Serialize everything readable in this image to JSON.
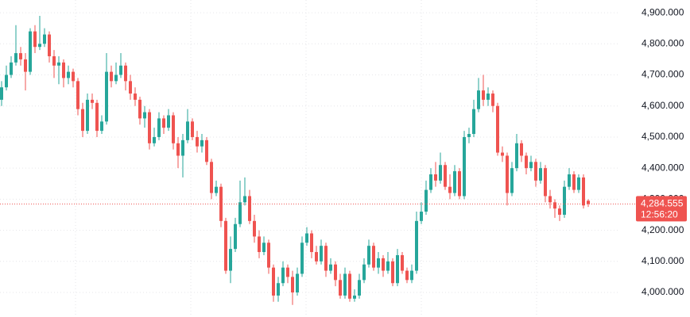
{
  "chart_data": {
    "type": "candlestick",
    "up_color": "#26a69a",
    "down_color": "#ef5350",
    "ylim": [
      3921,
      4941
    ],
    "yticks": [
      {
        "value": 4000,
        "label": "4,000.000"
      },
      {
        "value": 4100,
        "label": "4,100.000"
      },
      {
        "value": 4200,
        "label": "4,200.000"
      },
      {
        "value": 4300,
        "label": "4,300.000"
      },
      {
        "value": 4400,
        "label": "4,400.000"
      },
      {
        "value": 4500,
        "label": "4,500.000"
      },
      {
        "value": 4600,
        "label": "4,600.000"
      },
      {
        "value": 4700,
        "label": "4,700.000"
      },
      {
        "value": 4800,
        "label": "4,800.000"
      },
      {
        "value": 4900,
        "label": "4,900.000"
      }
    ],
    "grid": true,
    "price_line": {
      "value": 4284.555,
      "label": "4,284.555",
      "countdown": "12:56:20"
    },
    "open": [
      4620,
      4660,
      4700,
      4740,
      4770,
      4750,
      4710,
      4840,
      4790,
      4800,
      4830,
      4760,
      4730,
      4740,
      4690,
      4710,
      4680,
      4590,
      4520,
      4620,
      4610,
      4520,
      4550,
      4710,
      4680,
      4700,
      4730,
      4680,
      4640,
      4620,
      4560,
      4580,
      4480,
      4500,
      4560,
      4530,
      4570,
      4480,
      4440,
      4490,
      4550,
      4500,
      4470,
      4490,
      4420,
      4320,
      4340,
      4230,
      4070,
      4140,
      4220,
      4290,
      4310,
      4230,
      4180,
      4130,
      4160,
      4080,
      3990,
      4030,
      4080,
      4050,
      4000,
      4060,
      4160,
      4190,
      4130,
      4100,
      4150,
      4070,
      4090,
      4040,
      3990,
      4060,
      3980,
      3990,
      4040,
      4090,
      4150,
      4080,
      4110,
      4070,
      4100,
      4030,
      4120,
      4070,
      4040,
      4070,
      4230,
      4260,
      4330,
      4380,
      4360,
      4410,
      4340,
      4320,
      4390,
      4310,
      4500,
      4510,
      4590,
      4650,
      4620,
      4640,
      4600,
      4450,
      4440,
      4320,
      4400,
      4480,
      4440,
      4400,
      4420,
      4360,
      4400,
      4310,
      4290,
      4270,
      4250,
      4340,
      4380,
      4330,
      4370,
      4295
    ],
    "high": [
      4680,
      4730,
      4760,
      4860,
      4790,
      4770,
      4850,
      4860,
      4890,
      4850,
      4840,
      4780,
      4760,
      4750,
      4730,
      4720,
      4690,
      4610,
      4640,
      4640,
      4620,
      4570,
      4770,
      4730,
      4740,
      4770,
      4740,
      4700,
      4660,
      4630,
      4600,
      4590,
      4530,
      4580,
      4570,
      4590,
      4580,
      4500,
      4510,
      4590,
      4560,
      4520,
      4510,
      4500,
      4430,
      4360,
      4350,
      4240,
      4180,
      4240,
      4360,
      4370,
      4330,
      4250,
      4200,
      4180,
      4170,
      4090,
      4050,
      4100,
      4090,
      4070,
      4080,
      4180,
      4210,
      4200,
      4150,
      4170,
      4160,
      4110,
      4100,
      4060,
      4080,
      4070,
      4010,
      4060,
      4110,
      4170,
      4160,
      4130,
      4120,
      4130,
      4110,
      4140,
      4130,
      4080,
      4090,
      4260,
      4290,
      4360,
      4400,
      4420,
      4450,
      4420,
      4380,
      4410,
      4400,
      4520,
      4530,
      4620,
      4690,
      4700,
      4660,
      4650,
      4610,
      4470,
      4450,
      4420,
      4510,
      4490,
      4450,
      4440,
      4430,
      4420,
      4410,
      4330,
      4300,
      4280,
      4360,
      4400,
      4390,
      4380,
      4380,
      4300
    ],
    "low": [
      4600,
      4650,
      4690,
      4730,
      4730,
      4650,
      4700,
      4770,
      4780,
      4790,
      4740,
      4690,
      4670,
      4660,
      4670,
      4660,
      4570,
      4500,
      4510,
      4590,
      4500,
      4510,
      4540,
      4660,
      4670,
      4690,
      4650,
      4620,
      4600,
      4540,
      4530,
      4460,
      4470,
      4490,
      4510,
      4520,
      4460,
      4400,
      4370,
      4480,
      4490,
      4450,
      4450,
      4410,
      4300,
      4310,
      4210,
      4060,
      4030,
      4130,
      4210,
      4280,
      4220,
      4160,
      4110,
      4120,
      4060,
      3970,
      3970,
      4020,
      4030,
      3960,
      3990,
      4050,
      4150,
      4110,
      4090,
      4090,
      4050,
      4060,
      4020,
      3980,
      3980,
      3970,
      3970,
      3980,
      4030,
      4080,
      4070,
      4060,
      4050,
      4060,
      4020,
      4020,
      4060,
      4030,
      4030,
      4060,
      4220,
      4250,
      4320,
      4340,
      4350,
      4330,
      4300,
      4310,
      4300,
      4300,
      4480,
      4500,
      4580,
      4600,
      4600,
      4580,
      4440,
      4420,
      4280,
      4310,
      4390,
      4420,
      4380,
      4390,
      4340,
      4350,
      4290,
      4270,
      4240,
      4230,
      4240,
      4330,
      4320,
      4320,
      4270,
      4275
    ],
    "close": [
      4660,
      4700,
      4740,
      4770,
      4750,
      4710,
      4840,
      4790,
      4800,
      4830,
      4760,
      4730,
      4740,
      4690,
      4710,
      4680,
      4590,
      4520,
      4620,
      4610,
      4520,
      4550,
      4710,
      4680,
      4700,
      4730,
      4680,
      4640,
      4620,
      4560,
      4580,
      4480,
      4500,
      4560,
      4530,
      4570,
      4480,
      4440,
      4490,
      4550,
      4500,
      4470,
      4490,
      4420,
      4320,
      4340,
      4230,
      4070,
      4140,
      4220,
      4290,
      4310,
      4230,
      4180,
      4130,
      4160,
      4080,
      3990,
      4030,
      4080,
      4050,
      4000,
      4060,
      4160,
      4190,
      4130,
      4100,
      4150,
      4070,
      4090,
      4040,
      3990,
      4060,
      3980,
      3990,
      4040,
      4090,
      4150,
      4080,
      4110,
      4070,
      4100,
      4030,
      4120,
      4070,
      4040,
      4070,
      4230,
      4260,
      4330,
      4380,
      4360,
      4410,
      4340,
      4320,
      4390,
      4310,
      4500,
      4510,
      4590,
      4650,
      4620,
      4640,
      4600,
      4450,
      4440,
      4320,
      4400,
      4480,
      4440,
      4400,
      4420,
      4360,
      4400,
      4310,
      4290,
      4270,
      4250,
      4340,
      4380,
      4330,
      4370,
      4280,
      4284.555
    ]
  }
}
